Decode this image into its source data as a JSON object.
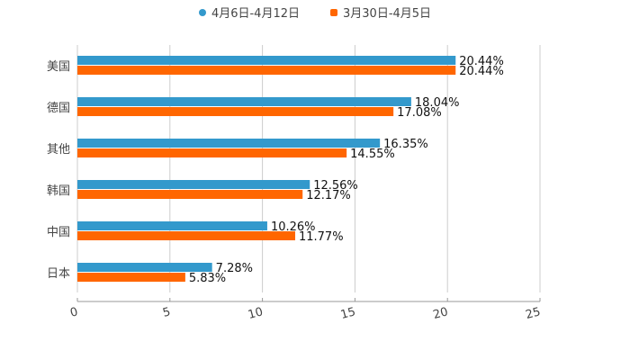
{
  "chart_data": {
    "type": "bar",
    "orientation": "horizontal",
    "categories": [
      "美国",
      "德国",
      "其他",
      "韩国",
      "中国",
      "日本"
    ],
    "series": [
      {
        "name": "4月6日-4月12日",
        "color": "#3399cc",
        "values": [
          20.44,
          18.04,
          16.35,
          12.56,
          10.26,
          7.28
        ],
        "labels": [
          "20.44%",
          "18.04%",
          "16.35%",
          "12.56%",
          "10.26%",
          "7.28%"
        ]
      },
      {
        "name": "3月30日-4月5日",
        "color": "#ff6600",
        "values": [
          20.44,
          17.08,
          14.55,
          12.17,
          11.77,
          5.83
        ],
        "labels": [
          "20.44%",
          "17.08%",
          "14.55%",
          "12.17%",
          "11.77%",
          "5.83%"
        ]
      }
    ],
    "xlim": [
      0,
      25
    ],
    "xticks": [
      0,
      5,
      10,
      15,
      20,
      25
    ],
    "xtick_labels": [
      "0",
      "5",
      "10",
      "15",
      "20",
      "25"
    ],
    "grid": true,
    "legend_position": "top-center",
    "title": "",
    "xlabel": "",
    "ylabel": ""
  }
}
